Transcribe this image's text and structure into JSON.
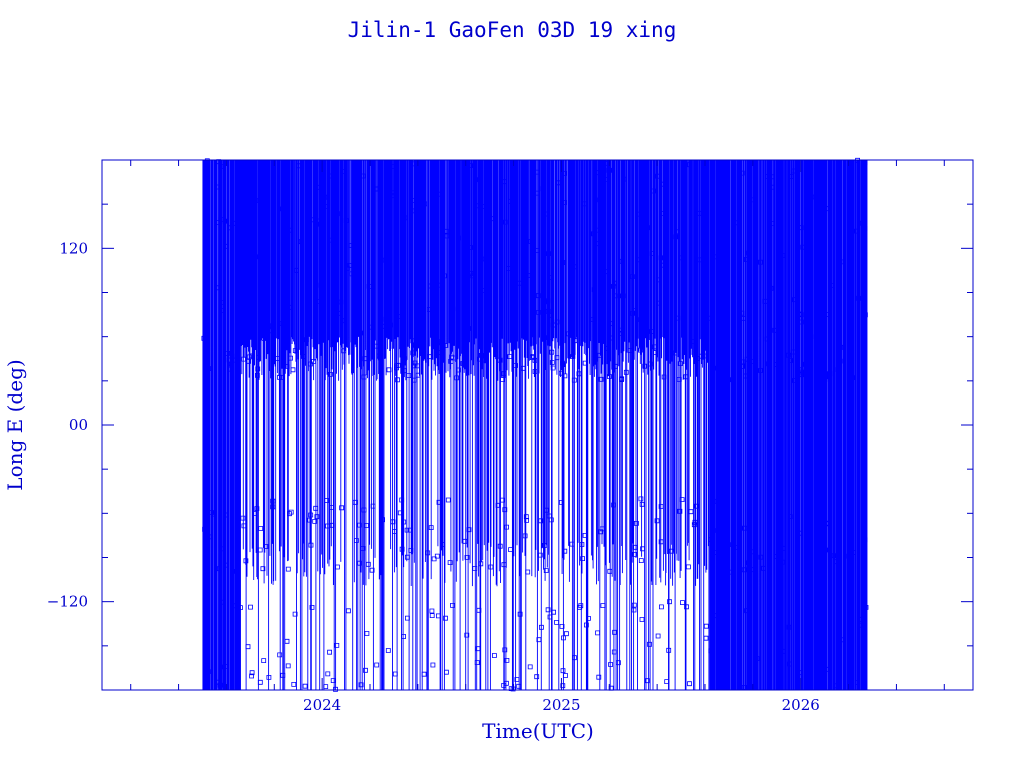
{
  "chart_data": {
    "type": "line",
    "title": "Jilin-1 GaoFen 03D 19 xing",
    "xlabel": "Time(UTC)",
    "ylabel": "Long E (deg)",
    "xlim": [
      2023.08,
      2026.72
    ],
    "ylim": [
      -180,
      180
    ],
    "x_ticks": [
      {
        "value": 2024.0,
        "label": "2024"
      },
      {
        "value": 2025.0,
        "label": "2025"
      },
      {
        "value": 2026.0,
        "label": "2026"
      }
    ],
    "y_ticks": [
      {
        "value": 120,
        "label": "120"
      },
      {
        "value": 0,
        "label": "00"
      },
      {
        "value": -120,
        "label": "−120"
      }
    ],
    "x_minor_step": 0.2,
    "y_minor_step": 30,
    "data_start": 2023.5,
    "data_end": 2026.28,
    "color": "#0000ff",
    "grid": false,
    "legend": "none"
  }
}
